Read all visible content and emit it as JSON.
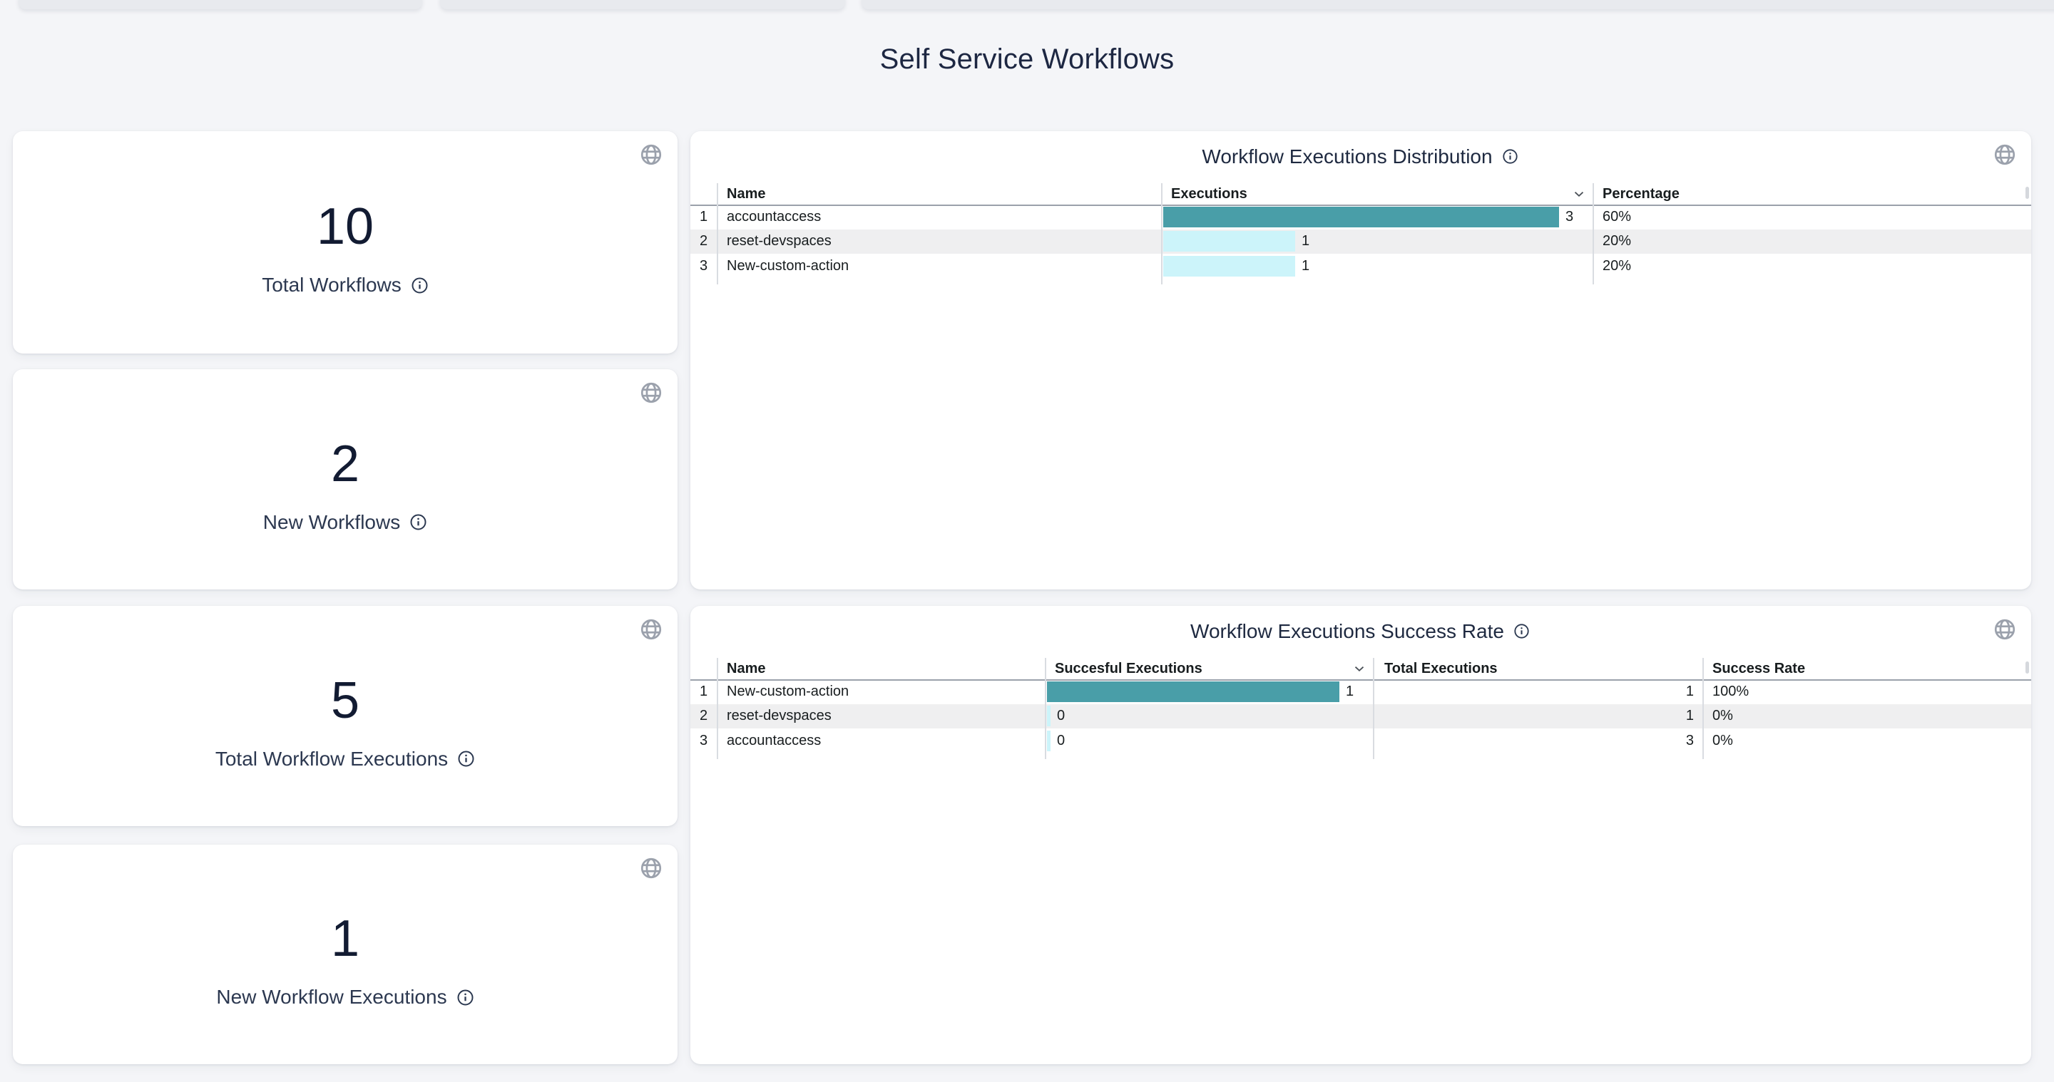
{
  "page": {
    "title": "Self Service Workflows"
  },
  "colors": {
    "background": "#f4f5f8",
    "bar_high": "#499ea8",
    "bar_low": "#ccf4fa",
    "navy_text": "#1e2940",
    "icon_gray": "#9ba1ac"
  },
  "icons": {
    "card_corner": "globe-icon",
    "label_hint": "info-icon",
    "sort": "chevron-down-icon"
  },
  "stat_cards": [
    {
      "value": "10",
      "label": "Total Workflows"
    },
    {
      "value": "2",
      "label": "New Workflows"
    },
    {
      "value": "5",
      "label": "Total Workflow Executions"
    },
    {
      "value": "1",
      "label": "New Workflow Executions"
    }
  ],
  "tables": [
    {
      "title": "Workflow Executions Distribution",
      "columns": [
        {
          "label": "",
          "type": "index"
        },
        {
          "label": "Name",
          "type": "text"
        },
        {
          "label": "Executions",
          "type": "bar",
          "sorted": "desc",
          "max": 3
        },
        {
          "label": "Percentage",
          "type": "text"
        }
      ],
      "rows": [
        [
          "1",
          "accountaccess",
          {
            "value": 3,
            "label": "3"
          },
          "60%"
        ],
        [
          "2",
          "reset-devspaces",
          {
            "value": 1,
            "label": "1"
          },
          "20%"
        ],
        [
          "3",
          "New-custom-action",
          {
            "value": 1,
            "label": "1"
          },
          "20%"
        ]
      ]
    },
    {
      "title": "Workflow Executions Success Rate",
      "columns": [
        {
          "label": "",
          "type": "index"
        },
        {
          "label": "Name",
          "type": "text"
        },
        {
          "label": "Succesful Executions",
          "type": "bar",
          "sorted": "desc",
          "max": 1
        },
        {
          "label": "Total Executions",
          "type": "text",
          "align": "right"
        },
        {
          "label": "Success Rate",
          "type": "text"
        }
      ],
      "rows": [
        [
          "1",
          "New-custom-action",
          {
            "value": 1,
            "label": "1"
          },
          "1",
          "100%"
        ],
        [
          "2",
          "reset-devspaces",
          {
            "value": 0,
            "label": "0"
          },
          "1",
          "0%"
        ],
        [
          "3",
          "accountaccess",
          {
            "value": 0,
            "label": "0"
          },
          "3",
          "0%"
        ]
      ]
    }
  ]
}
